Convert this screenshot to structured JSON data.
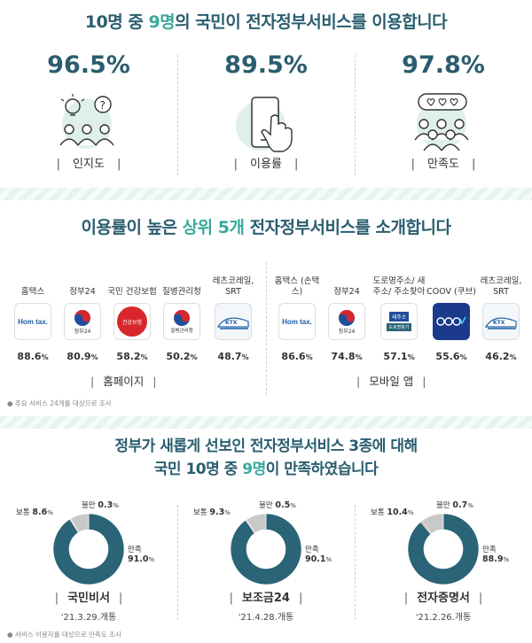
{
  "section1": {
    "headline_pre": "10명 중 ",
    "headline_hl": "9명",
    "headline_post": "의 국민이 전자정부서비스를 이용합니다",
    "stats": [
      {
        "value": "96.5%",
        "label": "인지도"
      },
      {
        "value": "89.5%",
        "label": "이용률"
      },
      {
        "value": "97.8%",
        "label": "만족도"
      }
    ]
  },
  "section2": {
    "headline_pre": "이용률이 높은 ",
    "headline_hl1": "상위 5개",
    "headline_post": " 전자정부서비스를 소개합니다",
    "homepage_label": "홈페이지",
    "mobile_label": "모바일 앱",
    "note": "● 주요 서비스 24개를 대상으로 조사",
    "logo_texts": {
      "hometax": "Hom tax.",
      "gov24": "정부24",
      "health": "건강보험",
      "kdca": "질병관리청",
      "ktx": "KTX",
      "juso1": "새주소",
      "juso2": "도로명찾기"
    }
  },
  "chart_data": [
    {
      "type": "bar",
      "title": "홈페이지",
      "categories": [
        "홈택스",
        "정부24",
        "국민 건강보험",
        "질병관리청",
        "레츠코레일, SRT"
      ],
      "values": [
        88.6,
        80.9,
        58.2,
        50.2,
        48.7
      ],
      "unit": "%"
    },
    {
      "type": "bar",
      "title": "모바일 앱",
      "categories": [
        "홈택스 (손택스)",
        "정부24",
        "도로명주소/ 새주소/ 주소찾아",
        "COOV (쿠브)",
        "레츠코레일, SRT"
      ],
      "values": [
        86.6,
        74.8,
        57.1,
        55.6,
        46.2
      ],
      "unit": "%"
    },
    {
      "type": "pie",
      "title": "국민비서",
      "subtitle": "'21.3.29.개통",
      "categories": [
        "만족",
        "보통",
        "불만"
      ],
      "values": [
        91.0,
        8.6,
        0.3
      ]
    },
    {
      "type": "pie",
      "title": "보조금24",
      "subtitle": "'21.4.28.개통",
      "categories": [
        "만족",
        "보통",
        "불만"
      ],
      "values": [
        90.1,
        9.3,
        0.5
      ]
    },
    {
      "type": "pie",
      "title": "전자증명서",
      "subtitle": "'21.2.26.개통",
      "categories": [
        "만족",
        "보통",
        "불만"
      ],
      "values": [
        88.9,
        10.4,
        0.7
      ]
    }
  ],
  "section3": {
    "line1": "정부가 새롭게 선보인 전자정부서비스 3종에 대해",
    "line2_pre": "국민 10명 중 ",
    "line2_hl": "9명",
    "line2_post": "이 만족하였습니다",
    "note": "● 서비스 이용자를 대상으로 만족도 조사"
  },
  "colors": {
    "navy": "#2a5d6f",
    "teal": "#3aa89d",
    "satisfied": "#2a6476",
    "normal": "#c9c9c9",
    "dissatisfied": "#e07a8a"
  }
}
